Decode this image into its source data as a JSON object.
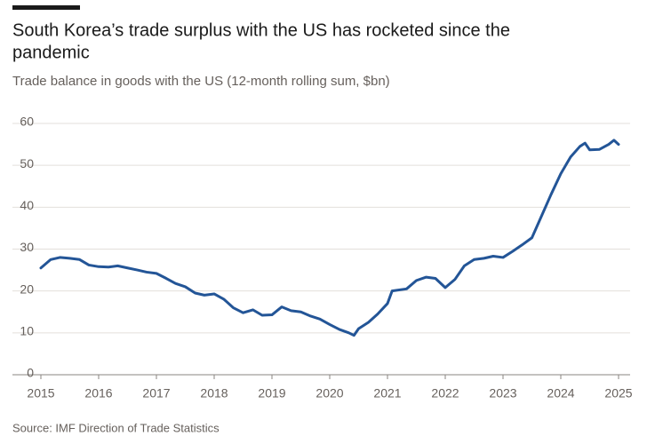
{
  "chart_data": {
    "type": "line",
    "title": [
      "South Korea’s trade surplus with the US has rocketed since the",
      "pandemic"
    ],
    "subtitle": "Trade balance in goods with the US (12-month rolling sum, $bn)",
    "source": "Source: IMF Direction of Trade Statistics",
    "series": [
      {
        "name": "Trade balance",
        "color": "#235597",
        "x": [
          2015.0,
          2015.17,
          2015.33,
          2015.5,
          2015.67,
          2015.83,
          2016.0,
          2016.17,
          2016.33,
          2016.5,
          2016.67,
          2016.83,
          2017.0,
          2017.17,
          2017.33,
          2017.5,
          2017.67,
          2017.83,
          2018.0,
          2018.17,
          2018.33,
          2018.5,
          2018.67,
          2018.83,
          2019.0,
          2019.17,
          2019.33,
          2019.5,
          2019.67,
          2019.83,
          2020.0,
          2020.17,
          2020.33,
          2020.42,
          2020.5,
          2020.67,
          2020.83,
          2021.0,
          2021.08,
          2021.33,
          2021.5,
          2021.67,
          2021.83,
          2022.0,
          2022.17,
          2022.33,
          2022.5,
          2022.67,
          2022.83,
          2023.0,
          2023.17,
          2023.33,
          2023.5,
          2023.67,
          2023.83,
          2024.0,
          2024.17,
          2024.33,
          2024.42,
          2024.5,
          2024.67,
          2024.83,
          2024.92,
          2025.0
        ],
        "values": [
          25.5,
          27.5,
          28.0,
          27.8,
          27.5,
          26.2,
          25.8,
          25.7,
          26.0,
          25.5,
          25.0,
          24.5,
          24.2,
          23.0,
          21.8,
          21.0,
          19.5,
          19.0,
          19.3,
          18.0,
          16.0,
          14.8,
          15.5,
          14.2,
          14.3,
          16.2,
          15.3,
          15.0,
          14.0,
          13.3,
          12.0,
          10.8,
          10.0,
          9.4,
          11.0,
          12.5,
          14.5,
          17.0,
          20.0,
          20.5,
          22.5,
          23.3,
          23.0,
          20.8,
          22.8,
          26.0,
          27.5,
          27.8,
          28.3,
          28.0,
          29.5,
          31.0,
          32.7,
          38.0,
          43.0,
          48.0,
          52.0,
          54.5,
          55.3,
          53.7,
          53.8,
          55.0,
          56.0,
          55.0
        ]
      }
    ],
    "xlim": [
      2015,
      2025.2
    ],
    "xticks": [
      2015,
      2016,
      2017,
      2018,
      2019,
      2020,
      2021,
      2022,
      2023,
      2024,
      2025
    ],
    "ylim": [
      0,
      60
    ],
    "yticks": [
      0,
      10,
      20,
      30,
      40,
      50,
      60
    ],
    "grid": true
  }
}
